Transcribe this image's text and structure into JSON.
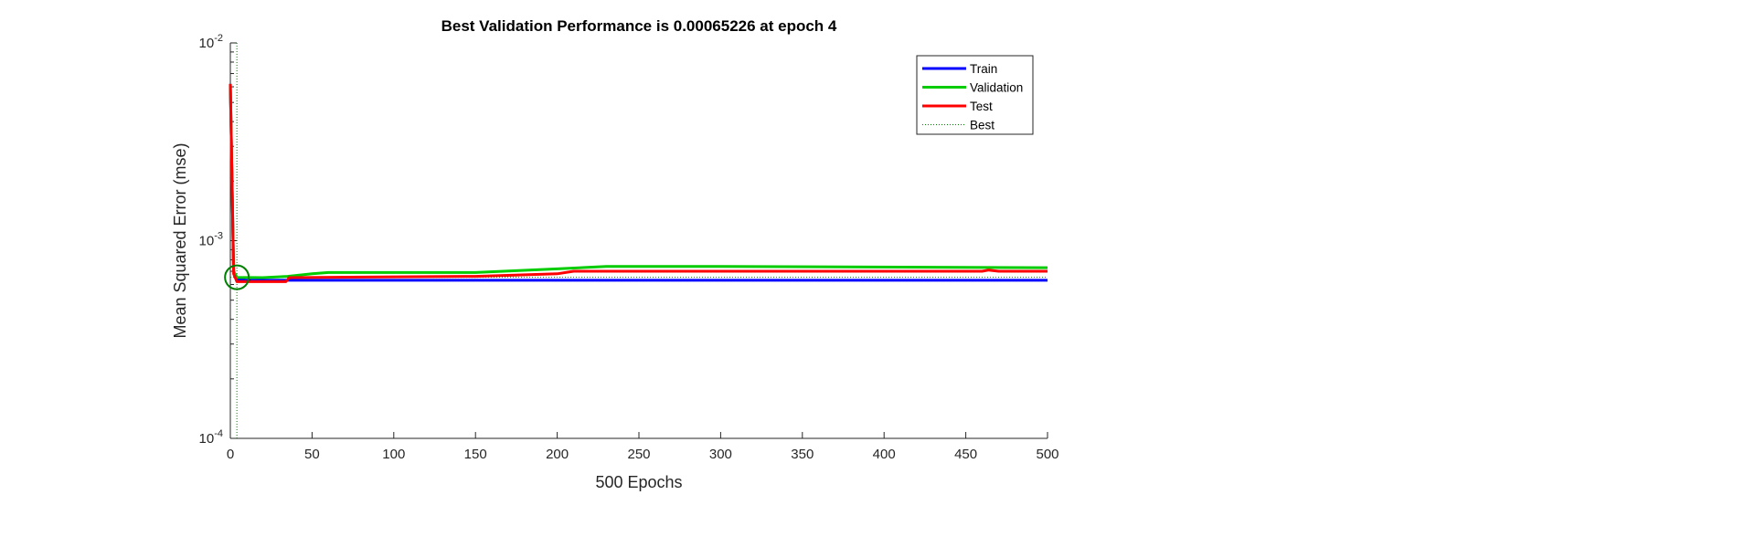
{
  "chart_data": {
    "type": "line",
    "title": "Best Validation Performance is 0.00065226 at epoch 4",
    "xlabel": "500 Epochs",
    "ylabel": "Mean Squared Error  (mse)",
    "x_scale": "linear",
    "y_scale": "log",
    "xlim": [
      0,
      500
    ],
    "ylim": [
      0.0001,
      0.01
    ],
    "x_ticks": [
      0,
      50,
      100,
      150,
      200,
      250,
      300,
      350,
      400,
      450,
      500
    ],
    "y_ticks": [
      {
        "value": 0.0001,
        "base": "10",
        "exp": "-4"
      },
      {
        "value": 0.001,
        "base": "10",
        "exp": "-3"
      },
      {
        "value": 0.01,
        "base": "10",
        "exp": "-2"
      }
    ],
    "grid": false,
    "legend_position": "top-right",
    "series": [
      {
        "name": "Train",
        "color": "#0000ff",
        "points": [
          [
            0,
            0.0062
          ],
          [
            2,
            0.0007
          ],
          [
            4,
            0.00064
          ],
          [
            10,
            0.00063
          ],
          [
            50,
            0.00063
          ],
          [
            200,
            0.00063
          ],
          [
            500,
            0.00063
          ]
        ]
      },
      {
        "name": "Validation",
        "color": "#00cc00",
        "points": [
          [
            0,
            0.0062
          ],
          [
            2,
            0.0007
          ],
          [
            4,
            0.000652
          ],
          [
            20,
            0.00065
          ],
          [
            35,
            0.00066
          ],
          [
            50,
            0.00068
          ],
          [
            60,
            0.00069
          ],
          [
            150,
            0.00069
          ],
          [
            200,
            0.00072
          ],
          [
            230,
            0.00074
          ],
          [
            300,
            0.00074
          ],
          [
            500,
            0.00073
          ]
        ]
      },
      {
        "name": "Test",
        "color": "#ff0000",
        "points": [
          [
            0,
            0.0062
          ],
          [
            2,
            0.00068
          ],
          [
            4,
            0.00062
          ],
          [
            34,
            0.00062
          ],
          [
            36,
            0.00065
          ],
          [
            150,
            0.00066
          ],
          [
            200,
            0.00068
          ],
          [
            210,
            0.0007
          ],
          [
            460,
            0.0007
          ],
          [
            464,
            0.00071
          ],
          [
            470,
            0.0007
          ],
          [
            500,
            0.0007
          ]
        ]
      }
    ],
    "best": {
      "name": "Best",
      "epoch": 4,
      "value": 0.00065226,
      "color": "#008000"
    }
  }
}
